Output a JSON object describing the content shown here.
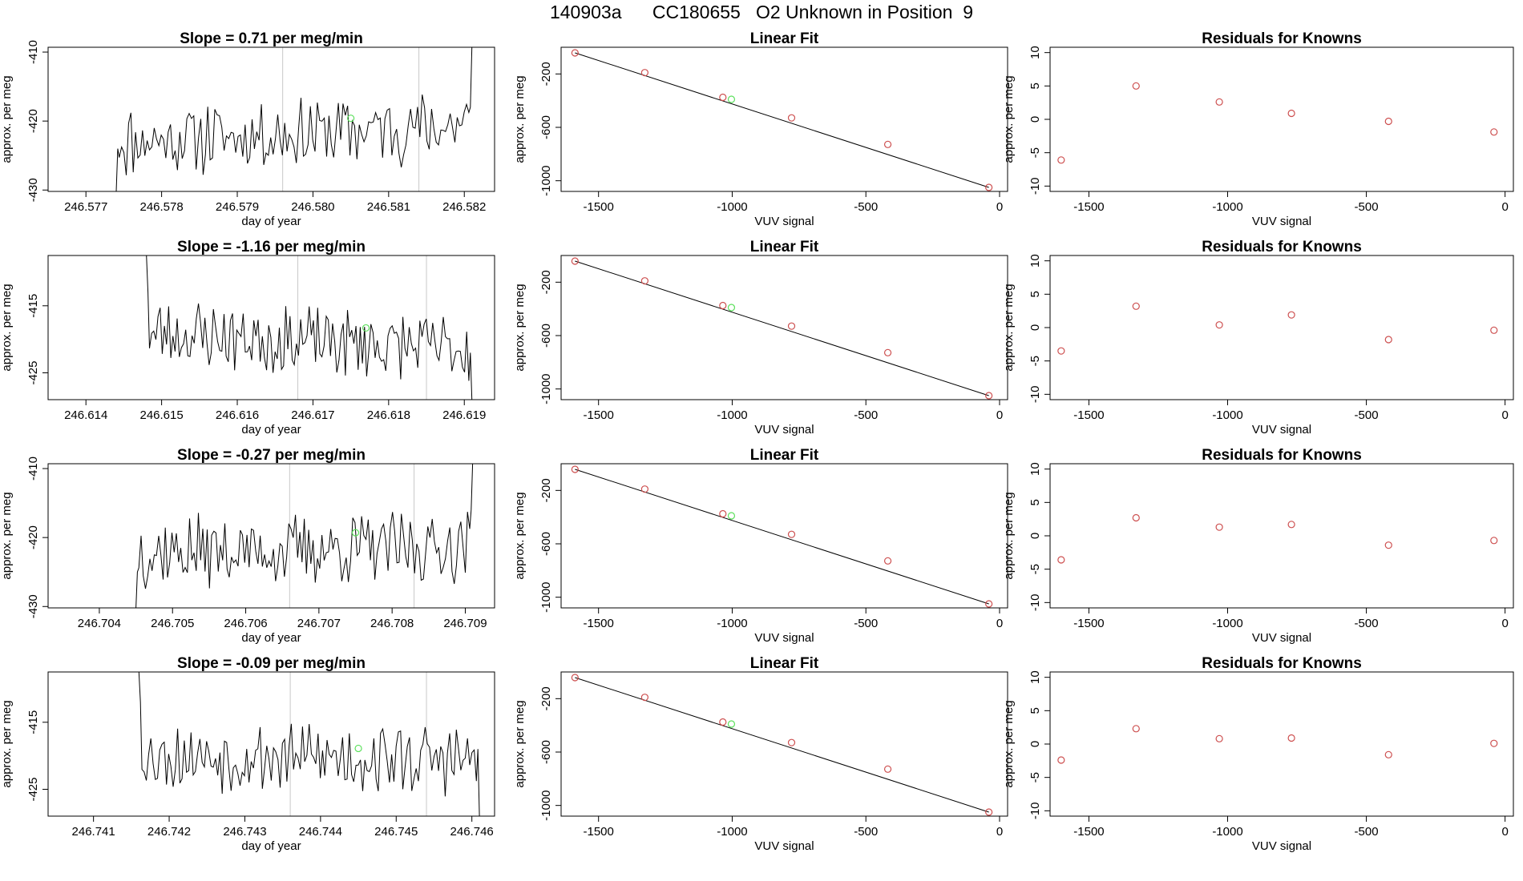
{
  "header": {
    "title": "140903a      CC180655   O2 Unknown in Position  9"
  },
  "colors": {
    "line": "#000000",
    "known_point": "#cd4f4f",
    "unknown_point": "#5ce05c",
    "marker_line": "#c8c8c8"
  },
  "chart_data": [
    {
      "row": 1,
      "type": "line",
      "title": "Slope =  0.71  per meg/min",
      "xlabel": "day of year",
      "ylabel": "approx. per meg",
      "xlim": [
        246.5765,
        246.5824
      ],
      "ylim": [
        -430.2,
        -409.3
      ],
      "xticks": [
        246.577,
        246.578,
        246.579,
        246.58,
        246.581,
        246.582
      ],
      "xtick_labels": [
        "246.577",
        "246.578",
        "246.579",
        "246.580",
        "246.581",
        "246.582"
      ],
      "yticks": [
        -430,
        -420,
        -410
      ],
      "ytick_labels": [
        "-430",
        "-420",
        "-410"
      ],
      "x_start": 246.5774,
      "x_end": 246.5821,
      "seed": 11,
      "drift": 0.6,
      "lead_in": [
        -430.2,
        -424
      ],
      "tail_out": [
        -418,
        -409.3
      ],
      "marker_x": [
        246.5796,
        246.5814
      ],
      "unknown_point": {
        "x": 246.5805,
        "y": -419.6
      }
    },
    {
      "row": 1,
      "type": "scatter",
      "title": "Linear Fit",
      "xlabel": "VUV signal",
      "ylabel": "approx. per meg",
      "xlim": [
        -1640,
        30
      ],
      "ylim": [
        -1080,
        0
      ],
      "xticks": [
        -1500,
        -1000,
        -500,
        0
      ],
      "xtick_labels": [
        "-1500",
        "-1000",
        "-500",
        "0"
      ],
      "yticks": [
        -1000,
        -600,
        -200
      ],
      "ytick_labels": [
        "-1000",
        "-600",
        "-200"
      ],
      "fit_line": [
        [
          -1588,
          -42
        ],
        [
          -40,
          -1050
        ]
      ],
      "known_points": [
        [
          -1588,
          -42
        ],
        [
          -1327,
          -190
        ],
        [
          -1035,
          -375
        ],
        [
          -778,
          -529
        ],
        [
          -418,
          -728
        ],
        [
          -40,
          -1050
        ]
      ],
      "unknown_points": [
        [
          -1003,
          -390
        ]
      ]
    },
    {
      "row": 1,
      "type": "scatter",
      "title": "Residuals for Knowns",
      "xlabel": "VUV signal",
      "ylabel": "approx. per meg",
      "xlim": [
        -1640,
        30
      ],
      "ylim": [
        -10.8,
        10.8
      ],
      "xticks": [
        -1500,
        -1000,
        -500,
        0
      ],
      "xtick_labels": [
        "-1500",
        "-1000",
        "-500",
        "0"
      ],
      "yticks": [
        -10,
        -5,
        0,
        5,
        10
      ],
      "ytick_labels": [
        "-10",
        "-5",
        "0",
        "5",
        "10"
      ],
      "known_points": [
        [
          -1600,
          -6.1
        ],
        [
          -1330,
          5.0
        ],
        [
          -1030,
          2.6
        ],
        [
          -770,
          0.9
        ],
        [
          -420,
          -0.3
        ],
        [
          -40,
          -1.9
        ]
      ],
      "unknown_points": []
    },
    {
      "row": 2,
      "type": "line",
      "title": "Slope =  -1.16  per meg/min",
      "xlabel": "day of year",
      "ylabel": "approx. per meg",
      "xlim": [
        246.6135,
        246.6194
      ],
      "ylim": [
        -429.0,
        -407.5
      ],
      "xticks": [
        246.614,
        246.615,
        246.616,
        246.617,
        246.618,
        246.619
      ],
      "xtick_labels": [
        "246.614",
        "246.615",
        "246.616",
        "246.617",
        "246.618",
        "246.619"
      ],
      "yticks": [
        -425,
        -415
      ],
      "ytick_labels": [
        "-425",
        "-415"
      ],
      "x_start": 246.6148,
      "x_end": 246.6191,
      "seed": 23,
      "drift": -0.6,
      "lead_in": [
        -407.5,
        -413
      ],
      "tail_out": [
        -422,
        -429.0
      ],
      "marker_x": [
        246.6168,
        246.6185
      ],
      "unknown_point": {
        "x": 246.6177,
        "y": -418.3
      }
    },
    {
      "row": 2,
      "type": "scatter",
      "title": "Linear Fit",
      "xlabel": "VUV signal",
      "ylabel": "approx. per meg",
      "xlim": [
        -1640,
        30
      ],
      "ylim": [
        -1080,
        0
      ],
      "xticks": [
        -1500,
        -1000,
        -500,
        0
      ],
      "xtick_labels": [
        "-1500",
        "-1000",
        "-500",
        "0"
      ],
      "yticks": [
        -1000,
        -600,
        -200
      ],
      "ytick_labels": [
        "-1000",
        "-600",
        "-200"
      ],
      "fit_line": [
        [
          -1588,
          -42
        ],
        [
          -40,
          -1050
        ]
      ],
      "known_points": [
        [
          -1588,
          -42
        ],
        [
          -1327,
          -190
        ],
        [
          -1035,
          -375
        ],
        [
          -778,
          -529
        ],
        [
          -418,
          -728
        ],
        [
          -40,
          -1050
        ]
      ],
      "unknown_points": [
        [
          -1003,
          -390
        ]
      ]
    },
    {
      "row": 2,
      "type": "scatter",
      "title": "Residuals for Knowns",
      "xlabel": "VUV signal",
      "ylabel": "approx. per meg",
      "xlim": [
        -1640,
        30
      ],
      "ylim": [
        -10.8,
        10.8
      ],
      "xticks": [
        -1500,
        -1000,
        -500,
        0
      ],
      "xtick_labels": [
        "-1500",
        "-1000",
        "-500",
        "0"
      ],
      "yticks": [
        -10,
        -5,
        0,
        5,
        10
      ],
      "ytick_labels": [
        "-10",
        "-5",
        "0",
        "5",
        "10"
      ],
      "known_points": [
        [
          -1600,
          -3.5
        ],
        [
          -1330,
          3.2
        ],
        [
          -1030,
          0.4
        ],
        [
          -770,
          1.9
        ],
        [
          -420,
          -1.8
        ],
        [
          -40,
          -0.4
        ]
      ],
      "unknown_points": []
    },
    {
      "row": 3,
      "type": "line",
      "title": "Slope =  -0.27  per meg/min",
      "xlabel": "day of year",
      "ylabel": "approx. per meg",
      "xlim": [
        246.7033,
        246.7094
      ],
      "ylim": [
        -430.2,
        -409.3
      ],
      "xticks": [
        246.704,
        246.705,
        246.706,
        246.707,
        246.708,
        246.709
      ],
      "xtick_labels": [
        "246.704",
        "246.705",
        "246.706",
        "246.707",
        "246.708",
        "246.709"
      ],
      "yticks": [
        -430,
        -420,
        -410
      ],
      "ytick_labels": [
        "-430",
        "-420",
        "-410"
      ],
      "x_start": 246.7045,
      "x_end": 246.7091,
      "seed": 37,
      "drift": 0.2,
      "lead_in": [
        -430.2,
        -425
      ],
      "tail_out": [
        -416,
        -409.3
      ],
      "marker_x": [
        246.7066,
        246.7083
      ],
      "unknown_point": {
        "x": 246.7075,
        "y": -419.3
      }
    },
    {
      "row": 3,
      "type": "scatter",
      "title": "Linear Fit",
      "xlabel": "VUV signal",
      "ylabel": "approx. per meg",
      "xlim": [
        -1640,
        30
      ],
      "ylim": [
        -1080,
        0
      ],
      "xticks": [
        -1500,
        -1000,
        -500,
        0
      ],
      "xtick_labels": [
        "-1500",
        "-1000",
        "-500",
        "0"
      ],
      "yticks": [
        -1000,
        -600,
        -200
      ],
      "ytick_labels": [
        "-1000",
        "-600",
        "-200"
      ],
      "fit_line": [
        [
          -1588,
          -42
        ],
        [
          -40,
          -1050
        ]
      ],
      "known_points": [
        [
          -1588,
          -42
        ],
        [
          -1327,
          -190
        ],
        [
          -1035,
          -375
        ],
        [
          -778,
          -529
        ],
        [
          -418,
          -728
        ],
        [
          -40,
          -1050
        ]
      ],
      "unknown_points": [
        [
          -1003,
          -390
        ]
      ]
    },
    {
      "row": 3,
      "type": "scatter",
      "title": "Residuals for Knowns",
      "xlabel": "VUV signal",
      "ylabel": "approx. per meg",
      "xlim": [
        -1640,
        30
      ],
      "ylim": [
        -10.8,
        10.8
      ],
      "xticks": [
        -1500,
        -1000,
        -500,
        0
      ],
      "xtick_labels": [
        "-1500",
        "-1000",
        "-500",
        "0"
      ],
      "yticks": [
        -10,
        -5,
        0,
        5,
        10
      ],
      "ytick_labels": [
        "-10",
        "-5",
        "0",
        "5",
        "10"
      ],
      "known_points": [
        [
          -1600,
          -3.6
        ],
        [
          -1330,
          2.7
        ],
        [
          -1030,
          1.3
        ],
        [
          -770,
          1.7
        ],
        [
          -420,
          -1.4
        ],
        [
          -40,
          -0.7
        ]
      ],
      "unknown_points": []
    },
    {
      "row": 4,
      "type": "line",
      "title": "Slope =  -0.09  per meg/min",
      "xlabel": "day of year",
      "ylabel": "approx. per meg",
      "xlim": [
        246.7404,
        246.7463
      ],
      "ylim": [
        -429.0,
        -407.5
      ],
      "xticks": [
        246.741,
        246.742,
        246.743,
        246.744,
        246.745,
        246.746
      ],
      "xtick_labels": [
        "246.741",
        "246.742",
        "246.743",
        "246.744",
        "246.745",
        "246.746"
      ],
      "yticks": [
        -425,
        -415
      ],
      "ytick_labels": [
        "-425",
        "-415"
      ],
      "x_start": 246.7416,
      "x_end": 246.7461,
      "seed": 53,
      "drift": -0.2,
      "lead_in": [
        -407.5,
        -412
      ],
      "tail_out": [
        -419,
        -429.0
      ],
      "marker_x": [
        246.7436,
        246.7454
      ],
      "unknown_point": {
        "x": 246.7445,
        "y": -418.9
      }
    },
    {
      "row": 4,
      "type": "scatter",
      "title": "Linear Fit",
      "xlabel": "VUV signal",
      "ylabel": "approx. per meg",
      "xlim": [
        -1640,
        30
      ],
      "ylim": [
        -1080,
        0
      ],
      "xticks": [
        -1500,
        -1000,
        -500,
        0
      ],
      "xtick_labels": [
        "-1500",
        "-1000",
        "-500",
        "0"
      ],
      "yticks": [
        -1000,
        -600,
        -200
      ],
      "ytick_labels": [
        "-1000",
        "-600",
        "-200"
      ],
      "fit_line": [
        [
          -1588,
          -42
        ],
        [
          -40,
          -1050
        ]
      ],
      "known_points": [
        [
          -1588,
          -42
        ],
        [
          -1327,
          -190
        ],
        [
          -1035,
          -375
        ],
        [
          -778,
          -529
        ],
        [
          -418,
          -728
        ],
        [
          -40,
          -1050
        ]
      ],
      "unknown_points": [
        [
          -1003,
          -390
        ]
      ]
    },
    {
      "row": 4,
      "type": "scatter",
      "title": "Residuals for Knowns",
      "xlabel": "VUV signal",
      "ylabel": "approx. per meg",
      "xlim": [
        -1640,
        30
      ],
      "ylim": [
        -10.8,
        10.8
      ],
      "xticks": [
        -1500,
        -1000,
        -500,
        0
      ],
      "xtick_labels": [
        "-1500",
        "-1000",
        "-500",
        "0"
      ],
      "yticks": [
        -10,
        -5,
        0,
        5,
        10
      ],
      "ytick_labels": [
        "-10",
        "-5",
        "0",
        "5",
        "10"
      ],
      "known_points": [
        [
          -1600,
          -2.4
        ],
        [
          -1330,
          2.3
        ],
        [
          -1030,
          0.8
        ],
        [
          -770,
          0.9
        ],
        [
          -420,
          -1.6
        ],
        [
          -40,
          0.1
        ]
      ],
      "unknown_points": []
    }
  ]
}
